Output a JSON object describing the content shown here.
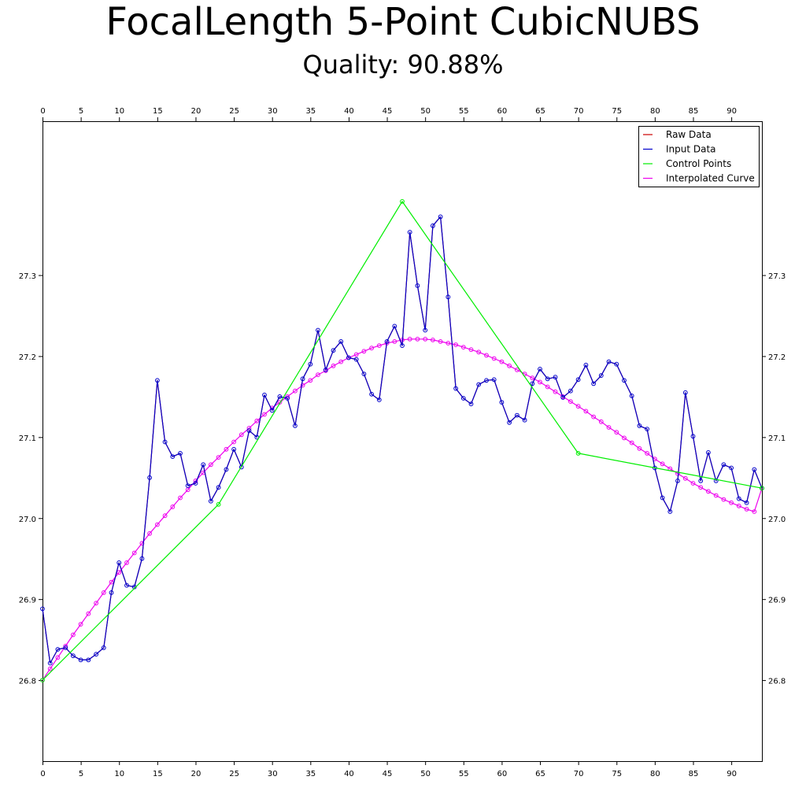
{
  "chart_data": {
    "type": "line",
    "title": "FocalLength 5-Point CubicNUBS",
    "subtitle": "Quality: 90.88%",
    "xlabel": "",
    "ylabel": "",
    "xlim": [
      0,
      94
    ],
    "ylim": [
      26.7,
      27.49
    ],
    "x_ticks": [
      0,
      5,
      10,
      15,
      20,
      25,
      30,
      35,
      40,
      45,
      50,
      55,
      60,
      65,
      70,
      75,
      80,
      85,
      90
    ],
    "x_tick_labels": [
      "0",
      "5",
      "10",
      "15",
      "20",
      "25",
      "30",
      "35",
      "40",
      "45",
      "50",
      "55",
      "60",
      "65",
      "70",
      "75",
      "80",
      "85",
      "90"
    ],
    "y_ticks": [
      26.8,
      26.9,
      27.0,
      27.1,
      27.2,
      27.3
    ],
    "y_tick_labels": [
      "26.8",
      "26.9",
      "27.0",
      "27.1",
      "27.2",
      "27.3"
    ],
    "grid": false,
    "legend_position": "top-right",
    "series": [
      {
        "name": "Raw Data",
        "color": "#cc0000",
        "marker": "none",
        "x": [
          0,
          1,
          2,
          3,
          4,
          5,
          6,
          7,
          8,
          9,
          10,
          11,
          12,
          13,
          14,
          15,
          16,
          17,
          18,
          19,
          20,
          21,
          22,
          23,
          24,
          25,
          26,
          27,
          28,
          29,
          30,
          31,
          32,
          33,
          34,
          35,
          36,
          37,
          38,
          39,
          40,
          41,
          42,
          43,
          44,
          45,
          46,
          47,
          48,
          49,
          50,
          51,
          52,
          53,
          54,
          55,
          56,
          57,
          58,
          59,
          60,
          61,
          62,
          63,
          64,
          65,
          66,
          67,
          68,
          69,
          70,
          71,
          72,
          73,
          74,
          75,
          76,
          77,
          78,
          79,
          80,
          81,
          82,
          83,
          84,
          85,
          86,
          87,
          88,
          89,
          90,
          91,
          92,
          93,
          94
        ],
        "y": [
          26.888,
          26.821,
          26.838,
          26.84,
          26.83,
          26.825,
          26.825,
          26.832,
          26.84,
          26.908,
          26.945,
          26.917,
          26.915,
          26.95,
          27.05,
          27.17,
          27.094,
          27.076,
          27.08,
          27.04,
          27.043,
          27.066,
          27.021,
          27.038,
          27.06,
          27.085,
          27.063,
          27.108,
          27.1,
          27.152,
          27.133,
          27.15,
          27.148,
          27.114,
          27.172,
          27.19,
          27.232,
          27.183,
          27.207,
          27.218,
          27.198,
          27.196,
          27.178,
          27.153,
          27.146,
          27.218,
          27.237,
          27.213,
          27.353,
          27.287,
          27.232,
          27.361,
          27.372,
          27.273,
          27.16,
          27.148,
          27.141,
          27.165,
          27.17,
          27.171,
          27.143,
          27.118,
          27.127,
          27.121,
          27.166,
          27.184,
          27.172,
          27.174,
          27.149,
          27.157,
          27.171,
          27.189,
          27.166,
          27.176,
          27.193,
          27.19,
          27.17,
          27.151,
          27.114,
          27.11,
          27.062,
          27.025,
          27.008,
          27.046,
          27.155,
          27.101,
          27.046,
          27.081,
          27.046,
          27.066,
          27.062,
          27.024,
          27.019,
          27.06,
          27.037
        ]
      },
      {
        "name": "Input Data",
        "color": "#0000cc",
        "marker": "circle",
        "x": [
          0,
          1,
          2,
          3,
          4,
          5,
          6,
          7,
          8,
          9,
          10,
          11,
          12,
          13,
          14,
          15,
          16,
          17,
          18,
          19,
          20,
          21,
          22,
          23,
          24,
          25,
          26,
          27,
          28,
          29,
          30,
          31,
          32,
          33,
          34,
          35,
          36,
          37,
          38,
          39,
          40,
          41,
          42,
          43,
          44,
          45,
          46,
          47,
          48,
          49,
          50,
          51,
          52,
          53,
          54,
          55,
          56,
          57,
          58,
          59,
          60,
          61,
          62,
          63,
          64,
          65,
          66,
          67,
          68,
          69,
          70,
          71,
          72,
          73,
          74,
          75,
          76,
          77,
          78,
          79,
          80,
          81,
          82,
          83,
          84,
          85,
          86,
          87,
          88,
          89,
          90,
          91,
          92,
          93,
          94
        ],
        "y": [
          26.888,
          26.821,
          26.838,
          26.84,
          26.83,
          26.825,
          26.825,
          26.832,
          26.84,
          26.908,
          26.945,
          26.917,
          26.915,
          26.95,
          27.05,
          27.17,
          27.094,
          27.076,
          27.08,
          27.04,
          27.043,
          27.066,
          27.021,
          27.038,
          27.06,
          27.085,
          27.063,
          27.108,
          27.1,
          27.152,
          27.133,
          27.15,
          27.148,
          27.114,
          27.172,
          27.19,
          27.232,
          27.183,
          27.207,
          27.218,
          27.198,
          27.196,
          27.178,
          27.153,
          27.146,
          27.218,
          27.237,
          27.213,
          27.353,
          27.287,
          27.232,
          27.361,
          27.372,
          27.273,
          27.16,
          27.148,
          27.141,
          27.165,
          27.17,
          27.171,
          27.143,
          27.118,
          27.127,
          27.121,
          27.166,
          27.184,
          27.172,
          27.174,
          27.149,
          27.157,
          27.171,
          27.189,
          27.166,
          27.176,
          27.193,
          27.19,
          27.17,
          27.151,
          27.114,
          27.11,
          27.062,
          27.025,
          27.008,
          27.046,
          27.155,
          27.101,
          27.046,
          27.081,
          27.046,
          27.066,
          27.062,
          27.024,
          27.019,
          27.06,
          27.037
        ]
      },
      {
        "name": "Control Points",
        "color": "#00ee00",
        "marker": "circle",
        "x": [
          0,
          23,
          47,
          70,
          94
        ],
        "y": [
          26.8,
          27.017,
          27.391,
          27.08,
          27.037
        ]
      },
      {
        "name": "Interpolated Curve",
        "color": "#ee00ee",
        "marker": "circle",
        "x": [
          0,
          1,
          2,
          3,
          4,
          5,
          6,
          7,
          8,
          9,
          10,
          11,
          12,
          13,
          14,
          15,
          16,
          17,
          18,
          19,
          20,
          21,
          22,
          23,
          24,
          25,
          26,
          27,
          28,
          29,
          30,
          31,
          32,
          33,
          34,
          35,
          36,
          37,
          38,
          39,
          40,
          41,
          42,
          43,
          44,
          45,
          46,
          47,
          48,
          49,
          50,
          51,
          52,
          53,
          54,
          55,
          56,
          57,
          58,
          59,
          60,
          61,
          62,
          63,
          64,
          65,
          66,
          67,
          68,
          69,
          70,
          71,
          72,
          73,
          74,
          75,
          76,
          77,
          78,
          79,
          80,
          81,
          82,
          83,
          84,
          85,
          86,
          87,
          88,
          89,
          90,
          91,
          92,
          93,
          94
        ],
        "y": [
          26.8,
          26.814,
          26.828,
          26.842,
          26.856,
          26.869,
          26.882,
          26.895,
          26.908,
          26.921,
          26.933,
          26.945,
          26.957,
          26.969,
          26.981,
          26.992,
          27.003,
          27.014,
          27.025,
          27.035,
          27.046,
          27.056,
          27.066,
          27.075,
          27.085,
          27.094,
          27.103,
          27.111,
          27.12,
          27.128,
          27.136,
          27.143,
          27.15,
          27.157,
          27.164,
          27.17,
          27.177,
          27.182,
          27.188,
          27.193,
          27.198,
          27.202,
          27.206,
          27.21,
          27.213,
          27.216,
          27.218,
          27.22,
          27.221,
          27.221,
          27.221,
          27.22,
          27.218,
          27.216,
          27.214,
          27.211,
          27.208,
          27.205,
          27.201,
          27.197,
          27.193,
          27.188,
          27.183,
          27.178,
          27.173,
          27.168,
          27.162,
          27.156,
          27.15,
          27.144,
          27.138,
          27.132,
          27.125,
          27.119,
          27.112,
          27.106,
          27.099,
          27.093,
          27.086,
          27.08,
          27.073,
          27.067,
          27.061,
          27.055,
          27.049,
          27.043,
          27.038,
          27.033,
          27.028,
          27.023,
          27.019,
          27.015,
          27.011,
          27.008,
          27.037
        ]
      }
    ]
  }
}
